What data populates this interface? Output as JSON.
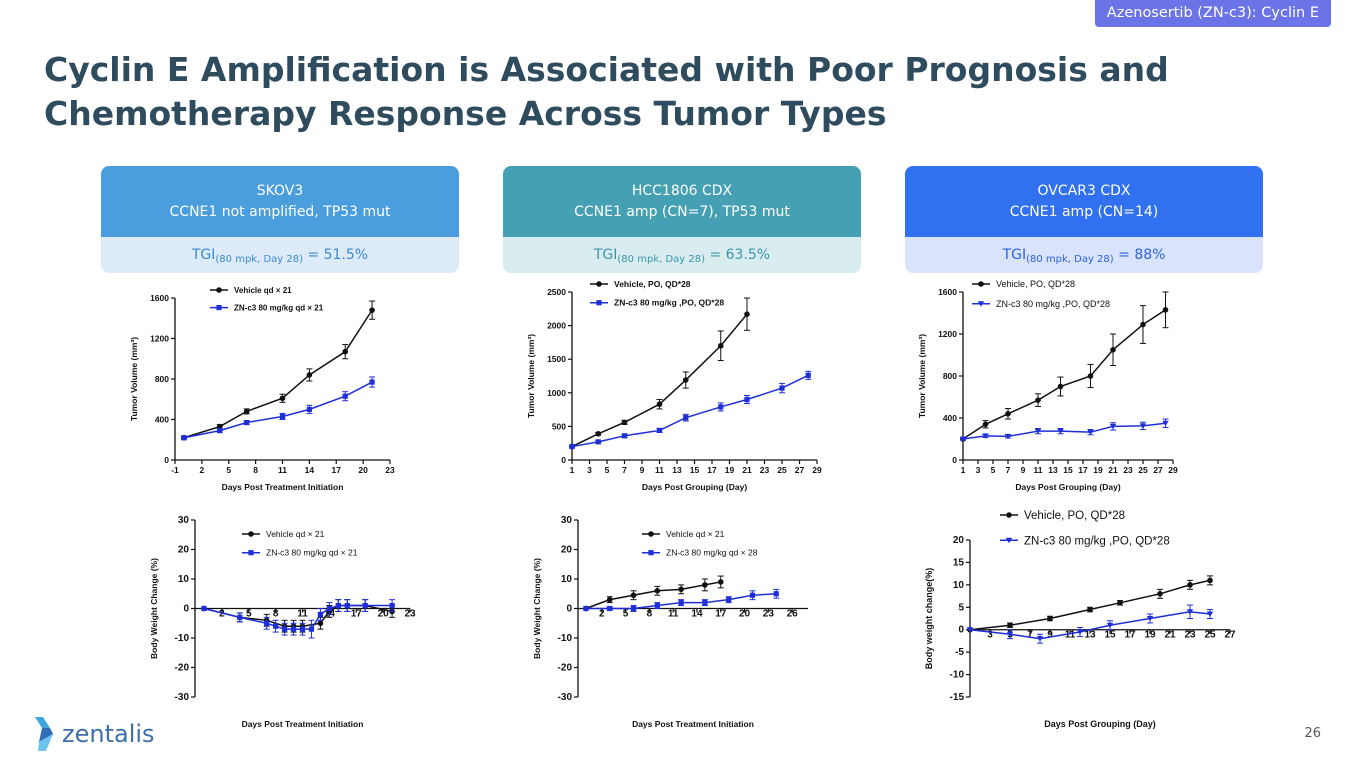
{
  "header_tag": "Azenosertib (ZN-c3): Cyclin E",
  "title": "Cyclin E Amplification is Associated with Poor Prognosis and Chemotherapy Response Across Tumor Types",
  "cards": [
    {
      "name": "SKOV3",
      "desc": "CCNE1 not amplified, TP53 mut",
      "tgi_prefix": "TGI",
      "tgi_sub": "(80 mpk, Day 28)",
      "tgi_value": " = 51.5%",
      "head_color": "#4a9ede",
      "tgi_bg": "#ddeaf8",
      "tgi_color": "#3a8ad0"
    },
    {
      "name": "HCC1806 CDX",
      "desc": "CCNE1 amp (CN=7), TP53 mut",
      "tgi_prefix": "TGI",
      "tgi_sub": "(80 mpk, Day 28)",
      "tgi_value": " = 63.5%",
      "head_color": "#46a0b4",
      "tgi_bg": "#d9ecef",
      "tgi_color": "#3a97aa"
    },
    {
      "name": "OVCAR3 CDX",
      "desc": "CCNE1 amp (CN=14)",
      "tgi_prefix": "TGI",
      "tgi_sub": "(80 mpk, Day 28)",
      "tgi_value": " = 88%",
      "head_color": "#3170ee",
      "tgi_bg": "#d9e3fb",
      "tgi_color": "#2b62e0"
    }
  ],
  "logo_text": "zentalis",
  "page_number": "26",
  "chart_data": [
    {
      "type": "line",
      "xlabel": "Days Post Treatment Initiation",
      "ylabel": "Tumor Volume (mm³)",
      "xlim": [
        -1,
        23
      ],
      "ylim": [
        0,
        1600
      ],
      "xticks": [
        -1,
        2,
        5,
        8,
        11,
        14,
        17,
        20,
        23
      ],
      "yticks": [
        0,
        400,
        800,
        1200,
        1600
      ],
      "legend_position": "top-left",
      "series": [
        {
          "name": "Vehicle qd × 21",
          "color": "#111111",
          "marker": "circle",
          "x": [
            0,
            4,
            7,
            11,
            14,
            18,
            21
          ],
          "y": [
            220,
            330,
            480,
            610,
            840,
            1070,
            1480
          ],
          "err": [
            10,
            20,
            25,
            40,
            60,
            70,
            90
          ]
        },
        {
          "name": "ZN-c3 80 mg/kg qd × 21",
          "color": "#1f2fd6",
          "marker": "square",
          "x": [
            0,
            4,
            7,
            11,
            14,
            18,
            21
          ],
          "y": [
            220,
            290,
            370,
            430,
            500,
            630,
            770
          ],
          "err": [
            10,
            15,
            20,
            30,
            40,
            45,
            50
          ]
        }
      ]
    },
    {
      "type": "line",
      "xlabel": "Days Post Grouping (Day)",
      "ylabel": "Tumor Volume (mm³)",
      "xlim": [
        1,
        29
      ],
      "ylim": [
        0,
        2500
      ],
      "xticks": [
        1,
        3,
        5,
        7,
        9,
        11,
        13,
        15,
        17,
        19,
        21,
        23,
        25,
        27,
        29
      ],
      "yticks": [
        0,
        500,
        1000,
        1500,
        2000,
        2500
      ],
      "legend_position": "top-left",
      "series": [
        {
          "name": "Vehicle, PO, QD*28",
          "color": "#111111",
          "marker": "circle",
          "x": [
            1,
            4,
            7,
            11,
            14,
            18,
            21
          ],
          "y": [
            200,
            390,
            560,
            830,
            1190,
            1700,
            2170
          ],
          "err": [
            10,
            20,
            30,
            70,
            120,
            220,
            240
          ]
        },
        {
          "name": "ZN-c3 80 mg/kg ,PO, QD*28",
          "color": "#1f2fd6",
          "marker": "square",
          "x": [
            1,
            4,
            7,
            11,
            14,
            18,
            21,
            25,
            28
          ],
          "y": [
            200,
            270,
            360,
            440,
            630,
            790,
            900,
            1070,
            1260
          ],
          "err": [
            10,
            15,
            25,
            30,
            50,
            60,
            60,
            70,
            60
          ]
        }
      ]
    },
    {
      "type": "line",
      "xlabel": "Days Post Grouping (Day)",
      "ylabel": "Tumor Volume (mm³)",
      "xlim": [
        1,
        29
      ],
      "ylim": [
        0,
        1600
      ],
      "xticks": [
        1,
        3,
        5,
        7,
        9,
        11,
        13,
        15,
        17,
        19,
        21,
        23,
        25,
        27,
        29
      ],
      "yticks": [
        0,
        400,
        800,
        1200,
        1600
      ],
      "legend_position": "top-left",
      "series": [
        {
          "name": "Vehicle, PO, QD*28",
          "color": "#111111",
          "marker": "circle",
          "x": [
            1,
            4,
            7,
            11,
            14,
            18,
            21,
            25,
            28
          ],
          "y": [
            200,
            340,
            440,
            570,
            700,
            800,
            1050,
            1290,
            1430
          ],
          "err": [
            10,
            35,
            50,
            60,
            90,
            110,
            150,
            180,
            170
          ]
        },
        {
          "name": "ZN-c3 80 mg/kg ,PO, QD*28",
          "color": "#1f2fd6",
          "marker": "triangle-down",
          "x": [
            1,
            4,
            7,
            11,
            14,
            18,
            21,
            25,
            28
          ],
          "y": [
            200,
            230,
            225,
            275,
            275,
            265,
            320,
            325,
            350
          ],
          "err": [
            10,
            15,
            15,
            25,
            25,
            25,
            35,
            35,
            40
          ]
        }
      ]
    },
    {
      "type": "line",
      "xlabel": "Days Post Treatment Initiation",
      "ylabel": "Body Weight Change (%)",
      "xlim": [
        -1,
        23
      ],
      "ylim": [
        -30,
        30
      ],
      "xticks": [
        2,
        5,
        8,
        11,
        14,
        17,
        20,
        23
      ],
      "yticks": [
        -30,
        -20,
        -10,
        0,
        10,
        20,
        30
      ],
      "legend_position": "top-right",
      "series": [
        {
          "name": "Vehicle qd × 21",
          "color": "#111111",
          "marker": "circle",
          "x": [
            0,
            4,
            7,
            9,
            10,
            11,
            13,
            14,
            15,
            16,
            18,
            21
          ],
          "y": [
            0,
            -3,
            -4,
            -6,
            -6,
            -6,
            -5,
            -1,
            1,
            1,
            1,
            -1
          ],
          "err": [
            0,
            1.5,
            2,
            2,
            2,
            2,
            2,
            2,
            2,
            2,
            2,
            2
          ]
        },
        {
          "name": "ZN-c3 80 mg/kg qd × 21",
          "color": "#1f2fd6",
          "marker": "square",
          "x": [
            0,
            4,
            7,
            8,
            9,
            10,
            11,
            12,
            13,
            14,
            15,
            16,
            18,
            21
          ],
          "y": [
            0,
            -3,
            -5,
            -6,
            -7,
            -7,
            -7,
            -7,
            -2,
            0,
            1,
            1,
            1,
            1
          ],
          "err": [
            0,
            1.5,
            2,
            2,
            2,
            2,
            2,
            3,
            2,
            2,
            2,
            2,
            2,
            2
          ]
        }
      ]
    },
    {
      "type": "line",
      "xlabel": "Days Post Treatment Initiation",
      "ylabel": "Body Weight Change (%)",
      "xlim": [
        -1,
        28
      ],
      "ylim": [
        -30,
        30
      ],
      "xticks": [
        2,
        5,
        8,
        11,
        14,
        17,
        20,
        23,
        26
      ],
      "yticks": [
        -30,
        -20,
        -10,
        0,
        10,
        20,
        30
      ],
      "legend_position": "top-right",
      "series": [
        {
          "name": "Vehicle qd × 21",
          "color": "#111111",
          "marker": "circle",
          "x": [
            0,
            3,
            6,
            9,
            12,
            15,
            17
          ],
          "y": [
            0,
            3,
            4.5,
            6,
            6.5,
            8,
            9
          ],
          "err": [
            0,
            1,
            1.5,
            1.5,
            1.5,
            2,
            2
          ]
        },
        {
          "name": "ZN-c3 80 mg/kg qd × 28",
          "color": "#1f2fd6",
          "marker": "square",
          "x": [
            0,
            3,
            6,
            9,
            12,
            15,
            18,
            21,
            24
          ],
          "y": [
            0,
            0,
            0,
            1,
            2,
            2,
            3,
            4.5,
            5
          ],
          "err": [
            0,
            0.5,
            1,
            1,
            1,
            1,
            1,
            1.5,
            1.5
          ]
        }
      ]
    },
    {
      "type": "line",
      "xlabel": "Days Post Grouping (Day)",
      "ylabel": "Body weight change(%)",
      "xlim": [
        1,
        27
      ],
      "ylim": [
        -15,
        20
      ],
      "xticks": [
        3,
        5,
        7,
        9,
        11,
        13,
        15,
        17,
        19,
        21,
        23,
        25,
        27
      ],
      "yticks": [
        -15,
        -10,
        -5,
        0,
        5,
        10,
        15,
        20
      ],
      "legend_position": "top-left",
      "series": [
        {
          "name": "Vehicle, PO, QD*28",
          "color": "#111111",
          "marker": "circle",
          "x": [
            1,
            5,
            9,
            13,
            16,
            20,
            23,
            25
          ],
          "y": [
            0,
            1,
            2.5,
            4.5,
            6,
            8,
            10,
            11
          ],
          "err": [
            0,
            0.5,
            0.5,
            0.5,
            0.5,
            1,
            1,
            1
          ]
        },
        {
          "name": "ZN-c3 80 mg/kg ,PO, QD*28",
          "color": "#1f2fd6",
          "marker": "triangle-down",
          "x": [
            1,
            5,
            8,
            12,
            15,
            19,
            23,
            25
          ],
          "y": [
            0,
            -1,
            -2,
            -0.5,
            1,
            2.5,
            4,
            3.5
          ],
          "err": [
            0,
            1,
            1,
            1,
            1,
            1,
            1.5,
            1
          ]
        }
      ]
    }
  ]
}
